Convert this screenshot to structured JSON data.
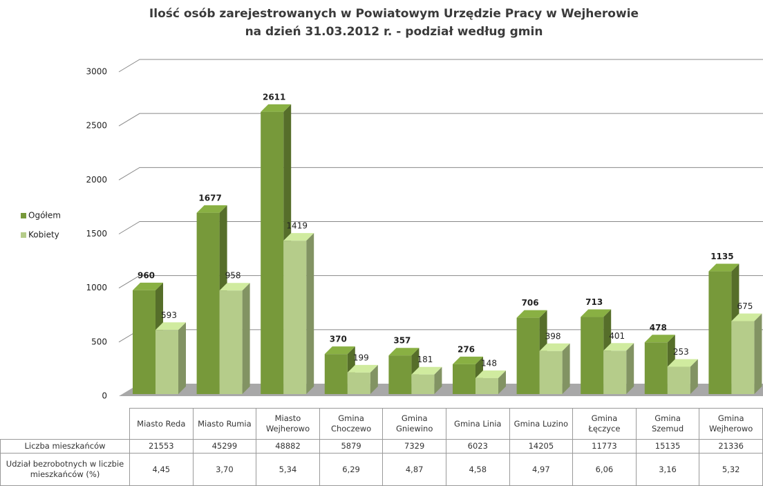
{
  "chart_data": {
    "type": "bar",
    "title": "Ilość osób zarejestrowanych w Powiatowym Urzędzie Pracy w Wejherowie",
    "subtitle": "na dzień 31.03.2012 r. - podział według gmin",
    "categories": [
      "Miasto Reda",
      "Miasto Rumia",
      "Miasto Wejherowo",
      "Gmina Choczewo",
      "Gmina Gniewino",
      "Gmina Linia",
      "Gmina Luzino",
      "Gmina Łęczyce",
      "Gmina Szemud",
      "Gmina Wejherowo"
    ],
    "series": [
      {
        "name": "Ogółem",
        "color": "#77993a",
        "values": [
          960,
          1677,
          2611,
          370,
          357,
          276,
          706,
          713,
          478,
          1135
        ]
      },
      {
        "name": "Kobiety",
        "color": "#b5cc8a",
        "values": [
          593,
          958,
          1419,
          199,
          181,
          148,
          398,
          401,
          253,
          675
        ]
      }
    ],
    "ylim": [
      0,
      3000
    ],
    "yticks": [
      0,
      500,
      1000,
      1500,
      2000,
      2500,
      3000
    ],
    "grid": true,
    "legend": "left"
  },
  "table": {
    "rows": [
      {
        "label": "Liczba mieszkańców",
        "values": [
          "21553",
          "45299",
          "48882",
          "5879",
          "7329",
          "6023",
          "14205",
          "11773",
          "15135",
          "21336"
        ]
      },
      {
        "label": "Udział bezrobotnych w liczbie mieszkańców (%)",
        "values": [
          "4,45",
          "3,70",
          "5,34",
          "6,29",
          "4,87",
          "4,58",
          "4,97",
          "6,06",
          "3,16",
          "5,32"
        ]
      }
    ]
  }
}
